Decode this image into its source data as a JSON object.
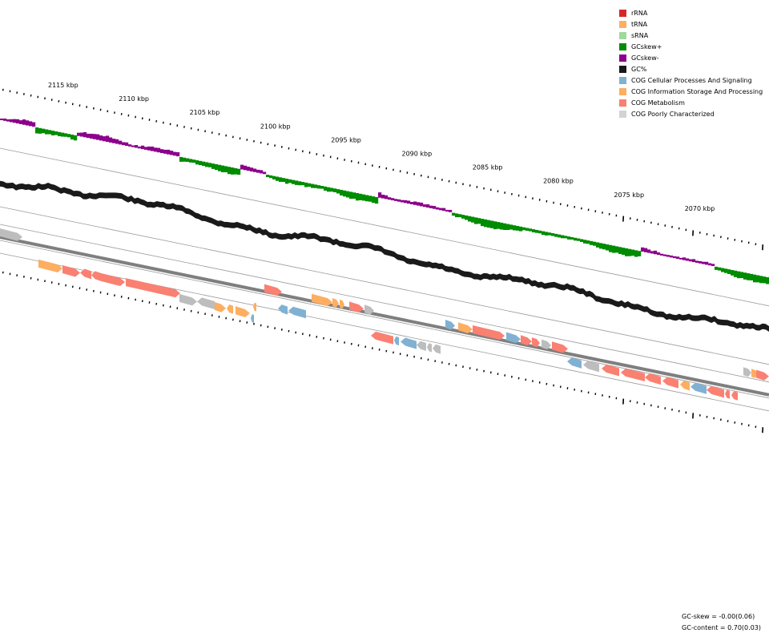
{
  "legend": [
    {
      "label": "rRNA",
      "color": "#d62728"
    },
    {
      "label": "tRNA",
      "color": "#fdae61"
    },
    {
      "label": "sRNA",
      "color": "#a1d99b"
    },
    {
      "label": "GCskew+",
      "color": "#008c00"
    },
    {
      "label": "GCskew-",
      "color": "#8c008c"
    },
    {
      "label": "GC%",
      "color": "#1a1a1a"
    },
    {
      "label": "COG Cellular Processes And Signaling",
      "color": "#80b1d3"
    },
    {
      "label": "COG Information Storage And Processing",
      "color": "#fdae61"
    },
    {
      "label": "COG Metabolism",
      "color": "#fa8072"
    },
    {
      "label": "COG Poorly Characterized",
      "color": "#d3d3d3"
    }
  ],
  "ticks": [
    {
      "label": "2115 kbp"
    },
    {
      "label": "2110 kbp"
    },
    {
      "label": "2105 kbp"
    },
    {
      "label": "2100 kbp"
    },
    {
      "label": "2095 kbp"
    },
    {
      "label": "2090 kbp"
    },
    {
      "label": "2085 kbp"
    },
    {
      "label": "2080 kbp"
    },
    {
      "label": "2075 kbp"
    },
    {
      "label": "2070 kbp"
    }
  ],
  "stats": {
    "gc_skew": "GC-skew = -0.00(0.06)",
    "gc_content": "GC-content = 0.70(0.03)"
  },
  "colors": {
    "skew_pos": "#008c00",
    "skew_neg": "#8c008c",
    "gc": "#1a1a1a",
    "backbone": "#7f7f7f",
    "cog_cellular": "#80b1d3",
    "cog_info": "#fdae61",
    "cog_metabolism": "#fa8072",
    "cog_poor": "#bdbdbd"
  },
  "genes_top": [
    {
      "cat": "poor",
      "dir": 1
    },
    {
      "cat": "info",
      "dir": 1
    },
    {
      "cat": "metabolism",
      "dir": 1
    },
    {
      "cat": "metabolism",
      "dir": -1
    },
    {
      "cat": "metabolism",
      "dir": -1
    },
    {
      "cat": "metabolism",
      "dir": 1
    },
    {
      "cat": "metabolism",
      "dir": 1
    },
    {
      "cat": "poor",
      "dir": 1
    },
    {
      "cat": "poor",
      "dir": -1
    },
    {
      "cat": "info",
      "dir": 1
    },
    {
      "cat": "info",
      "dir": -1
    },
    {
      "cat": "info",
      "dir": 1
    },
    {
      "cat": "metabolism",
      "dir": 1
    },
    {
      "cat": "info",
      "dir": 1
    },
    {
      "cat": "info",
      "dir": 1
    },
    {
      "cat": "info",
      "dir": 1
    },
    {
      "cat": "metabolism",
      "dir": 1
    },
    {
      "cat": "poor",
      "dir": 1
    },
    {
      "cat": "cellular",
      "dir": 1
    },
    {
      "cat": "info",
      "dir": 1
    },
    {
      "cat": "metabolism",
      "dir": 1
    },
    {
      "cat": "cellular",
      "dir": 1
    },
    {
      "cat": "metabolism",
      "dir": 1
    },
    {
      "cat": "metabolism",
      "dir": 1
    },
    {
      "cat": "poor",
      "dir": 1
    },
    {
      "cat": "metabolism",
      "dir": 1
    },
    {
      "cat": "poor",
      "dir": 1
    },
    {
      "cat": "info",
      "dir": 1
    },
    {
      "cat": "metabolism",
      "dir": 1
    }
  ],
  "genes_bottom": [
    {
      "cat": "cellular",
      "dir": -1
    },
    {
      "cat": "info",
      "dir": -1
    },
    {
      "cat": "cellular",
      "dir": -1
    },
    {
      "cat": "cellular",
      "dir": -1
    },
    {
      "cat": "metabolism",
      "dir": -1
    },
    {
      "cat": "cellular",
      "dir": -1
    },
    {
      "cat": "cellular",
      "dir": -1
    },
    {
      "cat": "poor",
      "dir": -1
    },
    {
      "cat": "poor",
      "dir": -1
    },
    {
      "cat": "poor",
      "dir": -1
    },
    {
      "cat": "cellular",
      "dir": -1
    },
    {
      "cat": "poor",
      "dir": -1
    },
    {
      "cat": "metabolism",
      "dir": -1
    },
    {
      "cat": "metabolism",
      "dir": -1
    },
    {
      "cat": "metabolism",
      "dir": -1
    },
    {
      "cat": "metabolism",
      "dir": -1
    },
    {
      "cat": "info",
      "dir": -1
    },
    {
      "cat": "cellular",
      "dir": -1
    },
    {
      "cat": "metabolism",
      "dir": -1
    },
    {
      "cat": "metabolism",
      "dir": -1
    },
    {
      "cat": "metabolism",
      "dir": -1
    }
  ]
}
